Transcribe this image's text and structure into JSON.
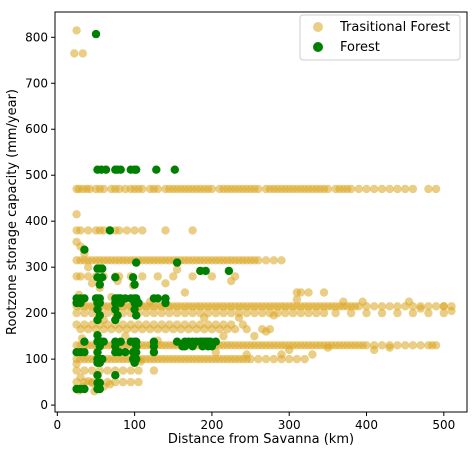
{
  "chart_data": {
    "type": "scatter",
    "title": "",
    "xlabel": "Distance from Savanna (km)",
    "ylabel": "Rootzone storage capacity (mm/year)",
    "xlim": [
      -3,
      530
    ],
    "ylim": [
      -15,
      855
    ],
    "xticks": [
      0,
      100,
      200,
      300,
      400,
      500
    ],
    "yticks": [
      0,
      100,
      200,
      300,
      400,
      500,
      600,
      700,
      800
    ],
    "grid": false,
    "legend_position": "top-right",
    "series": [
      {
        "name": "Trasitional Forest",
        "color": "#DAA520",
        "alpha": 0.55,
        "bands": [
          {
            "y": 470,
            "x": [
              25,
              28,
              33,
              38,
              42,
              50,
              55,
              60,
              70,
              75,
              80,
              88,
              95,
              100,
              105,
              110,
              120,
              125,
              130,
              140,
              145,
              150,
              155,
              160,
              165,
              170,
              175,
              180,
              185,
              190,
              195,
              200,
              210,
              215,
              220,
              225,
              230,
              235,
              240,
              245,
              250,
              255,
              260,
              270,
              275,
              280,
              285,
              290,
              295,
              300,
              305,
              310,
              315,
              320,
              325,
              330,
              335,
              340,
              345,
              350,
              360,
              365,
              370,
              375,
              380,
              390,
              400,
              410,
              420,
              430,
              440,
              450,
              460,
              480,
              490
            ]
          },
          {
            "y": 380,
            "x": [
              25,
              30,
              40,
              50,
              55,
              60,
              75,
              80,
              90,
              100,
              110,
              140,
              175
            ]
          },
          {
            "y": 315,
            "x": [
              25,
              30,
              35,
              40,
              45,
              50,
              55,
              60,
              65,
              70,
              75,
              80,
              85,
              90,
              95,
              100,
              105,
              110,
              115,
              120,
              125,
              130,
              135,
              140,
              145,
              150,
              155,
              160,
              165,
              170,
              175,
              180,
              185,
              190,
              195,
              200,
              205,
              210,
              215,
              220,
              225,
              230,
              235,
              240,
              245,
              250,
              255,
              260,
              270,
              280,
              290
            ]
          },
          {
            "y": 280,
            "x": [
              25,
              30,
              40,
              50,
              60,
              75,
              80,
              95,
              110,
              130,
              150,
              175,
              200,
              230
            ]
          },
          {
            "y": 245,
            "x": [
              310,
              315,
              325,
              345
            ]
          },
          {
            "y": 215,
            "x": [
              25,
              30,
              35,
              40,
              45,
              50,
              55,
              60,
              65,
              70,
              75,
              80,
              85,
              90,
              95,
              100,
              105,
              110,
              115,
              120,
              125,
              130,
              135,
              140,
              145,
              150,
              155,
              160,
              165,
              170,
              175,
              180,
              185,
              190,
              195,
              200,
              205,
              210,
              215,
              220,
              225,
              230,
              235,
              240,
              245,
              250,
              255,
              260,
              265,
              270,
              275,
              280,
              285,
              290,
              295,
              300,
              305,
              310,
              315,
              320,
              325,
              330,
              335,
              340,
              345,
              350,
              355,
              360,
              365,
              370,
              375,
              380,
              385,
              390,
              400,
              410,
              420,
              430,
              440,
              450,
              460,
              470,
              480,
              490,
              500,
              510
            ]
          },
          {
            "y": 200,
            "x": [
              25,
              35,
              45,
              55,
              65,
              75,
              85,
              95,
              105,
              115,
              125,
              135,
              145,
              155,
              165,
              175,
              185,
              195,
              205,
              215,
              225,
              235,
              245,
              255,
              265,
              275,
              285,
              295,
              305,
              315,
              325,
              335,
              345,
              360,
              380,
              400,
              420,
              440,
              460,
              480,
              500
            ]
          },
          {
            "y": 175,
            "x": [
              25,
              35,
              45,
              55,
              65,
              75,
              85,
              95,
              105,
              115,
              125,
              135,
              145,
              155,
              165,
              175,
              185,
              195,
              205,
              215,
              225,
              240
            ]
          },
          {
            "y": 165,
            "x": [
              30,
              40,
              50,
              60,
              70,
              80,
              90,
              100,
              110,
              120,
              130,
              140,
              150,
              160,
              170,
              180,
              190,
              200,
              210,
              220,
              230,
              245,
              265,
              275
            ]
          },
          {
            "y": 130,
            "x": [
              25,
              30,
              35,
              40,
              45,
              50,
              55,
              60,
              65,
              70,
              75,
              80,
              85,
              90,
              95,
              100,
              105,
              110,
              115,
              120,
              125,
              130,
              135,
              140,
              145,
              150,
              155,
              160,
              165,
              170,
              175,
              180,
              185,
              190,
              195,
              200,
              205,
              210,
              215,
              220,
              225,
              230,
              235,
              240,
              245,
              250,
              255,
              260,
              265,
              270,
              275,
              280,
              285,
              290,
              295,
              300,
              305,
              310,
              315,
              320,
              325,
              330,
              335,
              340,
              345,
              350,
              355,
              360,
              365,
              370,
              375,
              380,
              385,
              390,
              395,
              400,
              410,
              420,
              430,
              440,
              450,
              460,
              470,
              480,
              490
            ]
          },
          {
            "y": 100,
            "x": [
              25,
              30,
              35,
              40,
              45,
              50,
              55,
              60,
              65,
              70,
              75,
              80,
              85,
              90,
              95,
              100,
              105,
              110,
              115,
              120,
              125,
              130,
              135,
              140,
              145,
              150,
              155,
              160,
              165,
              170,
              175,
              180,
              185,
              190,
              195,
              200,
              205,
              210,
              215,
              220,
              225,
              230,
              235,
              240,
              245,
              250,
              260,
              270,
              280,
              290,
              300,
              310,
              320
            ]
          },
          {
            "y": 75,
            "x": [
              25,
              35,
              45,
              55,
              65,
              75,
              85,
              95,
              105,
              125
            ]
          },
          {
            "y": 50,
            "x": [
              25,
              35,
              45,
              55,
              65,
              75,
              85,
              95,
              105
            ]
          }
        ],
        "points": [
          [
            25,
            815
          ],
          [
            22,
            765
          ],
          [
            33,
            765
          ],
          [
            25,
            415
          ],
          [
            28,
            32
          ],
          [
            33,
            40
          ],
          [
            45,
            48
          ],
          [
            30,
            60
          ],
          [
            40,
            52
          ],
          [
            48,
            30
          ],
          [
            60,
            40
          ],
          [
            68,
            45
          ],
          [
            25,
            90
          ],
          [
            32,
            145
          ],
          [
            28,
            240
          ],
          [
            35,
            330
          ],
          [
            25,
            355
          ],
          [
            30,
            345
          ],
          [
            40,
            300
          ],
          [
            45,
            265
          ],
          [
            55,
            255
          ],
          [
            60,
            185
          ],
          [
            70,
            235
          ],
          [
            78,
            270
          ],
          [
            88,
            150
          ],
          [
            98,
            260
          ],
          [
            108,
            95
          ],
          [
            120,
            225
          ],
          [
            130,
            140
          ],
          [
            140,
            265
          ],
          [
            155,
            295
          ],
          [
            165,
            245
          ],
          [
            175,
            135
          ],
          [
            190,
            190
          ],
          [
            205,
            115
          ],
          [
            215,
            150
          ],
          [
            225,
            270
          ],
          [
            235,
            190
          ],
          [
            245,
            110
          ],
          [
            255,
            150
          ],
          [
            270,
            160
          ],
          [
            280,
            195
          ],
          [
            290,
            110
          ],
          [
            300,
            120
          ],
          [
            310,
            230
          ],
          [
            330,
            110
          ],
          [
            350,
            125
          ],
          [
            370,
            225
          ],
          [
            395,
            225
          ],
          [
            410,
            120
          ],
          [
            430,
            125
          ],
          [
            455,
            225
          ],
          [
            470,
            210
          ],
          [
            485,
            130
          ],
          [
            500,
            215
          ],
          [
            510,
            205
          ]
        ]
      },
      {
        "name": "Forest",
        "color": "#008000",
        "alpha": 1,
        "bands": [
          {
            "y": 512,
            "x": [
              52,
              57,
              63,
              75,
              78,
              82,
              95,
              100,
              102,
              128,
              152
            ]
          },
          {
            "y": 380,
            "x": [
              68
            ]
          },
          {
            "y": 338,
            "x": [
              35
            ]
          },
          {
            "y": 310,
            "x": [
              102,
              155
            ]
          },
          {
            "y": 297,
            "x": [
              52,
              55,
              58
            ]
          },
          {
            "y": 292,
            "x": [
              185,
              192,
              222
            ]
          },
          {
            "y": 278,
            "x": [
              52,
              58,
              75,
              98
            ]
          },
          {
            "y": 262,
            "x": [
              55,
              100
            ]
          },
          {
            "y": 232,
            "x": [
              25,
              30,
              35,
              50,
              52,
              55,
              75,
              78,
              80,
              82,
              88,
              95,
              100,
              102,
              125,
              130,
              140
            ]
          },
          {
            "y": 222,
            "x": [
              25,
              30,
              52,
              55,
              75,
              82,
              100,
              102,
              105,
              140
            ]
          },
          {
            "y": 208,
            "x": [
              52,
              75,
              100
            ]
          },
          {
            "y": 195,
            "x": [
              55,
              78,
              102
            ]
          },
          {
            "y": 185,
            "x": [
              52,
              75
            ]
          },
          {
            "y": 152,
            "x": [
              52
            ]
          },
          {
            "y": 138,
            "x": [
              35,
              52,
              58,
              60,
              75,
              82,
              95,
              100,
              102,
              125,
              155,
              165,
              170,
              175,
              180,
              185,
              188,
              192,
              195,
              198,
              205
            ]
          },
          {
            "y": 128,
            "x": [
              55,
              75,
              102,
              125,
              162,
              165,
              175,
              188,
              195,
              200
            ]
          },
          {
            "y": 115,
            "x": [
              25,
              30,
              35,
              52,
              75,
              80,
              88,
              98,
              100,
              102,
              125
            ]
          },
          {
            "y": 100,
            "x": [
              52,
              55,
              58,
              98,
              100,
              102
            ]
          },
          {
            "y": 92,
            "x": [
              52,
              55,
              100
            ]
          },
          {
            "y": 65,
            "x": [
              52,
              75
            ]
          },
          {
            "y": 48,
            "x": [
              52,
              55
            ]
          },
          {
            "y": 35,
            "x": [
              25,
              30,
              35,
              52,
              55
            ]
          }
        ],
        "points": [
          [
            50,
            807
          ]
        ]
      }
    ]
  }
}
